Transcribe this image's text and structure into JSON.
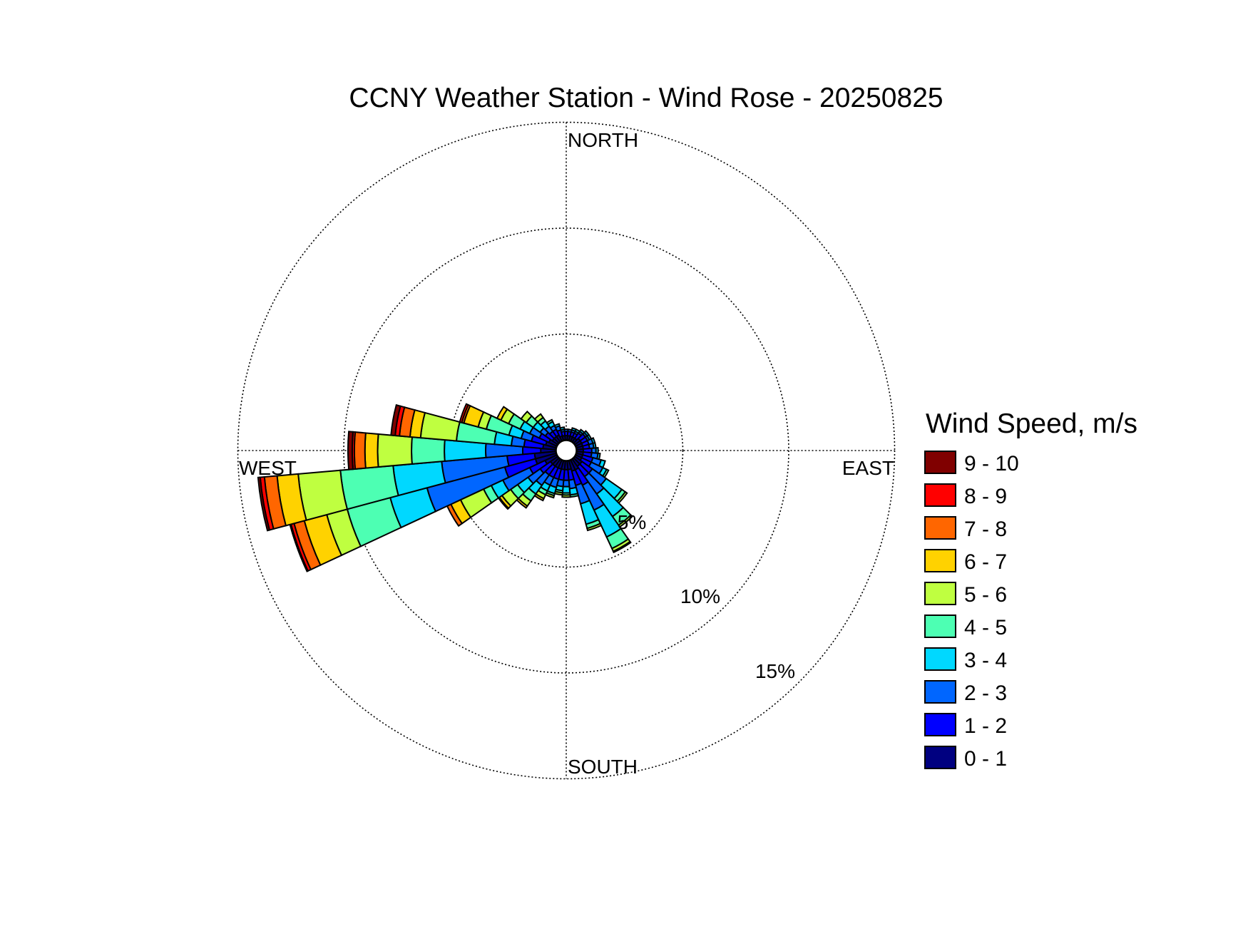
{
  "chart_data": {
    "type": "wind-rose",
    "title": "CCNY Weather Station - Wind Rose - 20250825",
    "direction_labels": {
      "north": "NORTH",
      "south": "SOUTH",
      "east": "EAST",
      "west": "WEST"
    },
    "radial_ticks": [
      {
        "value": 5,
        "label": "5%"
      },
      {
        "value": 10,
        "label": "10%"
      },
      {
        "value": 15,
        "label": "15%"
      }
    ],
    "radial_max": 15,
    "legend": {
      "title": "Wind Speed, m/s",
      "placement": "right",
      "bins": [
        {
          "label": "9 - 10",
          "color": "#800000"
        },
        {
          "label": "8 - 9",
          "color": "#ff0000"
        },
        {
          "label": "7 - 8",
          "color": "#ff6600"
        },
        {
          "label": "6 - 7",
          "color": "#ffd200"
        },
        {
          "label": "5 - 6",
          "color": "#bfff40"
        },
        {
          "label": "4 - 5",
          "color": "#4dffb3"
        },
        {
          "label": "3 - 4",
          "color": "#00d8ff"
        },
        {
          "label": "2 - 3",
          "color": "#0066ff"
        },
        {
          "label": "1 - 2",
          "color": "#0000ff"
        },
        {
          "label": "0 - 1",
          "color": "#000080"
        }
      ]
    },
    "speed_bins_order": [
      "0 - 1",
      "1 - 2",
      "2 - 3",
      "3 - 4",
      "4 - 5",
      "5 - 6",
      "6 - 7",
      "7 - 8",
      "8 - 9",
      "9 - 10"
    ],
    "sector_width_deg": 10,
    "sectors": [
      {
        "dir": 0,
        "pct": [
          0.2,
          0.2,
          0.1,
          0,
          0,
          0,
          0,
          0,
          0,
          0
        ]
      },
      {
        "dir": 10,
        "pct": [
          0.2,
          0.2,
          0.1,
          0,
          0,
          0,
          0,
          0,
          0,
          0
        ]
      },
      {
        "dir": 20,
        "pct": [
          0.2,
          0.2,
          0.1,
          0.1,
          0,
          0,
          0,
          0,
          0,
          0
        ]
      },
      {
        "dir": 30,
        "pct": [
          0.2,
          0.2,
          0.1,
          0.1,
          0,
          0,
          0,
          0,
          0,
          0
        ]
      },
      {
        "dir": 40,
        "pct": [
          0.2,
          0.3,
          0.1,
          0.1,
          0,
          0,
          0,
          0,
          0,
          0
        ]
      },
      {
        "dir": 50,
        "pct": [
          0.3,
          0.3,
          0.1,
          0.1,
          0,
          0,
          0,
          0,
          0,
          0
        ]
      },
      {
        "dir": 60,
        "pct": [
          0.3,
          0.3,
          0.1,
          0.1,
          0,
          0,
          0,
          0,
          0,
          0
        ]
      },
      {
        "dir": 70,
        "pct": [
          0.3,
          0.3,
          0.2,
          0.1,
          0,
          0,
          0,
          0,
          0,
          0
        ]
      },
      {
        "dir": 80,
        "pct": [
          0.3,
          0.3,
          0.2,
          0.1,
          0,
          0,
          0,
          0,
          0,
          0
        ]
      },
      {
        "dir": 90,
        "pct": [
          0.3,
          0.4,
          0.2,
          0.1,
          0,
          0,
          0,
          0,
          0,
          0
        ]
      },
      {
        "dir": 100,
        "pct": [
          0.3,
          0.4,
          0.3,
          0.1,
          0,
          0,
          0,
          0,
          0,
          0
        ]
      },
      {
        "dir": 110,
        "pct": [
          0.3,
          0.5,
          0.4,
          0.2,
          0,
          0,
          0,
          0,
          0,
          0
        ]
      },
      {
        "dir": 120,
        "pct": [
          0.3,
          0.5,
          0.6,
          0.2,
          0.1,
          0,
          0,
          0,
          0,
          0
        ]
      },
      {
        "dir": 130,
        "pct": [
          0.4,
          0.6,
          0.8,
          0.9,
          0.2,
          0.1,
          0,
          0,
          0,
          0
        ]
      },
      {
        "dir": 140,
        "pct": [
          0.4,
          0.6,
          1.0,
          1.3,
          0.5,
          0.1,
          0,
          0,
          0,
          0
        ]
      },
      {
        "dir": 150,
        "pct": [
          0.5,
          0.8,
          1.3,
          1.4,
          0.6,
          0.15,
          0.05,
          0,
          0,
          0
        ]
      },
      {
        "dir": 160,
        "pct": [
          0.5,
          0.7,
          0.9,
          1.0,
          0.2,
          0.1,
          0,
          0,
          0,
          0
        ]
      },
      {
        "dir": 170,
        "pct": [
          0.4,
          0.5,
          0.4,
          0.3,
          0.1,
          0,
          0,
          0,
          0,
          0
        ]
      },
      {
        "dir": 180,
        "pct": [
          0.4,
          0.5,
          0.3,
          0.3,
          0.1,
          0.1,
          0,
          0,
          0,
          0
        ]
      },
      {
        "dir": 190,
        "pct": [
          0.4,
          0.5,
          0.3,
          0.2,
          0.1,
          0.1,
          0,
          0,
          0,
          0
        ]
      },
      {
        "dir": 200,
        "pct": [
          0.4,
          0.5,
          0.4,
          0.3,
          0.1,
          0.1,
          0,
          0,
          0,
          0
        ]
      },
      {
        "dir": 210,
        "pct": [
          0.4,
          0.5,
          0.4,
          0.3,
          0.2,
          0.2,
          0.1,
          0,
          0,
          0
        ]
      },
      {
        "dir": 220,
        "pct": [
          0.4,
          0.5,
          0.6,
          0.5,
          0.4,
          0.3,
          0.1,
          0,
          0,
          0
        ]
      },
      {
        "dir": 230,
        "pct": [
          0.4,
          0.6,
          0.7,
          0.6,
          0.4,
          0.5,
          0.15,
          0.05,
          0,
          0
        ]
      },
      {
        "dir": 240,
        "pct": [
          0.6,
          0.8,
          1.4,
          0.6,
          0.4,
          1.2,
          0.5,
          0.2,
          0,
          0
        ]
      },
      {
        "dir": 250,
        "pct": [
          1.0,
          1.5,
          3.8,
          1.8,
          2.1,
          1.0,
          1.1,
          0.5,
          0.15,
          0.05
        ]
      },
      {
        "dir": 260,
        "pct": [
          1.0,
          1.3,
          3.1,
          2.3,
          2.5,
          2.0,
          1.0,
          0.6,
          0.2,
          0.1
        ]
      },
      {
        "dir": 270,
        "pct": [
          0.7,
          0.85,
          1.75,
          1.95,
          1.55,
          1.6,
          0.6,
          0.5,
          0.1,
          0.2
        ]
      },
      {
        "dir": 280,
        "pct": [
          0.6,
          0.9,
          0.6,
          0.8,
          1.8,
          1.7,
          0.5,
          0.5,
          0.2,
          0.2
        ]
      },
      {
        "dir": 290,
        "pct": [
          0.5,
          0.7,
          0.5,
          0.6,
          1.1,
          0.4,
          0.7,
          0.1,
          0.1,
          0
        ]
      },
      {
        "dir": 300,
        "pct": [
          0.4,
          0.5,
          0.5,
          0.5,
          0.6,
          0.4,
          0.2,
          0,
          0,
          0
        ]
      },
      {
        "dir": 310,
        "pct": [
          0.3,
          0.4,
          0.3,
          0.4,
          0.4,
          0.3,
          0,
          0,
          0,
          0
        ]
      },
      {
        "dir": 320,
        "pct": [
          0.3,
          0.3,
          0.3,
          0.3,
          0.2,
          0.2,
          0,
          0,
          0,
          0
        ]
      },
      {
        "dir": 330,
        "pct": [
          0.3,
          0.3,
          0.2,
          0.2,
          0.1,
          0,
          0,
          0,
          0,
          0
        ]
      },
      {
        "dir": 340,
        "pct": [
          0.2,
          0.3,
          0.2,
          0.1,
          0,
          0,
          0,
          0,
          0,
          0
        ]
      },
      {
        "dir": 350,
        "pct": [
          0.2,
          0.2,
          0.1,
          0.1,
          0,
          0,
          0,
          0,
          0,
          0
        ]
      }
    ]
  }
}
